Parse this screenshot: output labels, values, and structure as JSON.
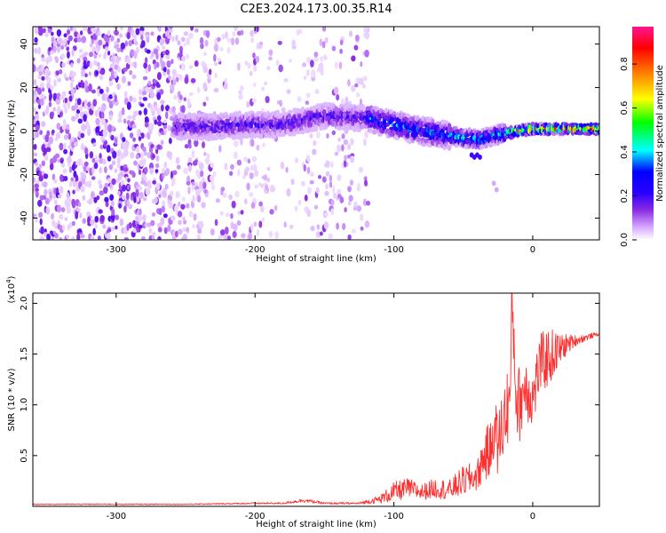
{
  "title": "C2E3.2024.173.00.35.R14",
  "chart_data": [
    {
      "type": "heatmap",
      "xlabel": "Height of straight line (km)",
      "ylabel": "Frequency (Hz)",
      "xlim": [
        -360,
        48
      ],
      "ylim": [
        -50,
        48
      ],
      "xticks": [
        -300,
        -200,
        -100,
        0
      ],
      "yticks": [
        -40,
        -20,
        0,
        20,
        40
      ],
      "grid": false,
      "colorbar": {
        "label": "Normalized spectral amplitude",
        "range": [
          0,
          0.97
        ],
        "ticks": [
          0.0,
          0.2,
          0.4,
          0.6,
          0.8
        ],
        "tick_labels": [
          "0.0",
          "0.2",
          "0.4",
          "0.6",
          "0.8"
        ],
        "colormap": [
          "#ffffff",
          "#d6a8ff",
          "#8a2be2",
          "#2a00ff",
          "#0000ff",
          "#00ffff",
          "#00ff00",
          "#ffff00",
          "#ff8000",
          "#ff0000",
          "#ff1493"
        ]
      },
      "ridge": [
        {
          "x": -255,
          "f": 2
        },
        {
          "x": -230,
          "f": 2
        },
        {
          "x": -200,
          "f": 3
        },
        {
          "x": -180,
          "f": 3
        },
        {
          "x": -150,
          "f": 7
        },
        {
          "x": -120,
          "f": 6
        },
        {
          "x": -100,
          "f": 3
        },
        {
          "x": -80,
          "f": 0
        },
        {
          "x": -60,
          "f": -2
        },
        {
          "x": -40,
          "f": -4
        },
        {
          "x": -20,
          "f": -1
        },
        {
          "x": 0,
          "f": 1
        },
        {
          "x": 20,
          "f": 1
        },
        {
          "x": 48,
          "f": 1
        }
      ]
    },
    {
      "type": "line",
      "xlabel": "Height of straight line (km)",
      "ylabel": "SNR (10 * v/v)",
      "y_multiplier": "(x10",
      "y_multiplier_exp": "4",
      "y_multiplier_close": ")",
      "xlim": [
        -360,
        48
      ],
      "ylim": [
        0,
        2.1
      ],
      "xticks": [
        -300,
        -200,
        -100,
        0
      ],
      "yticks": [
        0.5,
        1.0,
        1.5,
        2.0
      ],
      "ytick_labels": [
        "0.5",
        "1.0",
        "1.5",
        "2.0"
      ],
      "line_color": "#ff3030",
      "grid": false,
      "series": [
        {
          "x": [
            -360,
            -300,
            -250,
            -200,
            -180,
            -165,
            -150,
            -125,
            -110,
            -100,
            -90,
            -80,
            -70,
            -60,
            -50,
            -40,
            -35,
            -30,
            -28,
            -25,
            -20,
            -16,
            -15,
            -12,
            -10,
            -5,
            0,
            5,
            10,
            15,
            20,
            25,
            30,
            35,
            40,
            45,
            48
          ],
          "y": [
            0.02,
            0.02,
            0.02,
            0.03,
            0.03,
            0.06,
            0.03,
            0.03,
            0.07,
            0.14,
            0.18,
            0.14,
            0.18,
            0.16,
            0.25,
            0.3,
            0.5,
            0.55,
            0.8,
            0.6,
            0.9,
            1.1,
            2.1,
            1.1,
            1.0,
            1.2,
            1.05,
            1.4,
            1.45,
            1.5,
            1.55,
            1.6,
            1.63,
            1.65,
            1.67,
            1.69,
            1.7
          ],
          "spread": [
            0.005,
            0.005,
            0.005,
            0.008,
            0.008,
            0.02,
            0.01,
            0.01,
            0.04,
            0.1,
            0.1,
            0.08,
            0.1,
            0.1,
            0.15,
            0.15,
            0.25,
            0.3,
            0.3,
            0.35,
            0.4,
            0.4,
            0.3,
            0.4,
            0.4,
            0.35,
            0.3,
            0.3,
            0.3,
            0.25,
            0.15,
            0.1,
            0.06,
            0.04,
            0.03,
            0.02,
            0.02
          ]
        }
      ]
    }
  ]
}
